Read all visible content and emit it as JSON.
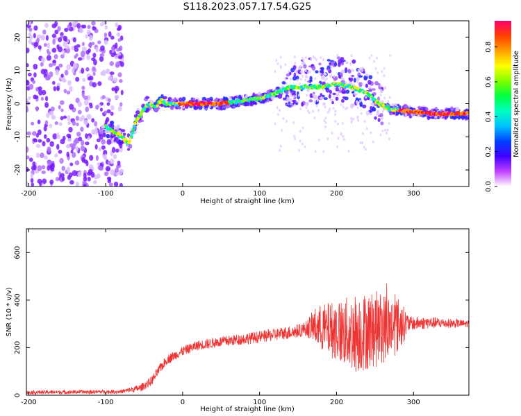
{
  "title": "S118.2023.057.17.54.G25",
  "chart_data": [
    {
      "type": "heatmap",
      "xlabel": "Height of straight line (km)",
      "ylabel": "Frequency (Hz)",
      "xlim": [
        -203,
        372
      ],
      "ylim": [
        -25,
        25
      ],
      "xticks": [
        "-200",
        "-100",
        "0",
        "100",
        "200",
        "300"
      ],
      "yticks": [
        "-20",
        "-10",
        "0",
        "10",
        "20"
      ],
      "colorbar": {
        "label": "Normalized spectral amplitude",
        "range": [
          0,
          0.95
        ],
        "ticks": [
          "0.0",
          "0.2",
          "0.4",
          "0.6",
          "0.8"
        ],
        "colors": [
          "#ffffff",
          "#c040ff",
          "#4000ff",
          "#0040ff",
          "#00c0ff",
          "#00ffc0",
          "#00ff40",
          "#80ff00",
          "#ffff00",
          "#ffa000",
          "#ff4000",
          "#ff0070"
        ]
      },
      "ridge": {
        "x": [
          -100,
          -85,
          -75,
          -70,
          -60,
          -45,
          -35,
          -28,
          -20,
          0,
          50,
          100,
          120,
          140,
          160,
          180,
          200,
          220,
          240,
          255,
          270,
          300,
          330,
          372
        ],
        "y": [
          -7,
          -9,
          -11,
          -12,
          -5,
          0,
          -1,
          1,
          0,
          0,
          0,
          1.5,
          3,
          5,
          5,
          5,
          6,
          5,
          3,
          0,
          -1.5,
          -2.5,
          -3,
          -3
        ]
      }
    },
    {
      "type": "line",
      "xlabel": "Height of straight line (km)",
      "ylabel": "SNR (10 * v/v)",
      "xlim": [
        -203,
        372
      ],
      "ylim": [
        0,
        700
      ],
      "xticks": [
        "-200",
        "-100",
        "0",
        "100",
        "200",
        "300"
      ],
      "yticks": [
        "0",
        "200",
        "400",
        "600"
      ],
      "line_color": "#ee3333",
      "envelope": {
        "x": [
          -203,
          -80,
          -55,
          -40,
          -30,
          -20,
          0,
          20,
          50,
          100,
          150,
          170,
          200,
          220,
          240,
          255,
          270,
          290,
          320,
          372
        ],
        "y": [
          12,
          15,
          30,
          60,
          110,
          150,
          185,
          210,
          225,
          245,
          270,
          290,
          270,
          260,
          270,
          280,
          290,
          300,
          305,
          300
        ]
      },
      "noise": {
        "x": [
          -203,
          -80,
          -40,
          0,
          100,
          160,
          175,
          200,
          225,
          255,
          280,
          295,
          372
        ],
        "y": [
          8,
          8,
          20,
          20,
          25,
          30,
          90,
          130,
          170,
          160,
          120,
          30,
          15
        ]
      }
    }
  ]
}
